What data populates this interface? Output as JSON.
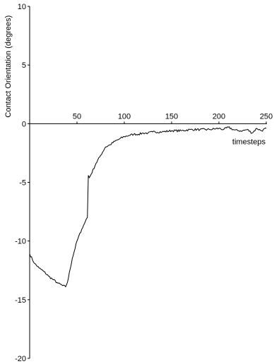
{
  "chart_data": {
    "type": "line",
    "title": "",
    "xlabel": "timesteps",
    "ylabel": "Contact Orientation (degrees)",
    "xlim": [
      0,
      250
    ],
    "ylim": [
      -20,
      10
    ],
    "grid": false,
    "xticks": [
      50,
      100,
      150,
      200,
      250
    ],
    "xtick_labels": [
      "50",
      "100",
      "150",
      "200",
      "250"
    ],
    "yticks": [
      10,
      5,
      0,
      -5,
      -10,
      -15,
      -20
    ],
    "ytick_labels": [
      "10",
      "5",
      "0",
      "-5",
      "-10",
      "-15",
      "-20"
    ],
    "series": [
      {
        "x": [
          0,
          5,
          10,
          15,
          20,
          25,
          30,
          35,
          38,
          40,
          45,
          50,
          55,
          58,
          60,
          61,
          62,
          63,
          65,
          70,
          75,
          80,
          85,
          90,
          95,
          100,
          105,
          110,
          115,
          120,
          125,
          130,
          140,
          150,
          160,
          170,
          180,
          190,
          200,
          205,
          210,
          215,
          220,
          225,
          230,
          235,
          240,
          245,
          250
        ],
        "y": [
          -11.1,
          -11.9,
          -12.3,
          -12.6,
          -13.0,
          -13.3,
          -13.6,
          -13.8,
          -13.9,
          -13.5,
          -11.5,
          -10.0,
          -9.0,
          -8.5,
          -8.1,
          -8.0,
          -4.4,
          -4.6,
          -4.3,
          -3.4,
          -2.7,
          -2.0,
          -1.8,
          -1.5,
          -1.3,
          -1.1,
          -1.0,
          -0.9,
          -0.9,
          -0.8,
          -0.8,
          -0.7,
          -0.7,
          -0.6,
          -0.6,
          -0.5,
          -0.5,
          -0.5,
          -0.4,
          -0.5,
          -0.3,
          -0.5,
          -0.6,
          -0.6,
          -0.5,
          -0.8,
          -0.4,
          -0.6,
          -0.4
        ]
      }
    ]
  }
}
